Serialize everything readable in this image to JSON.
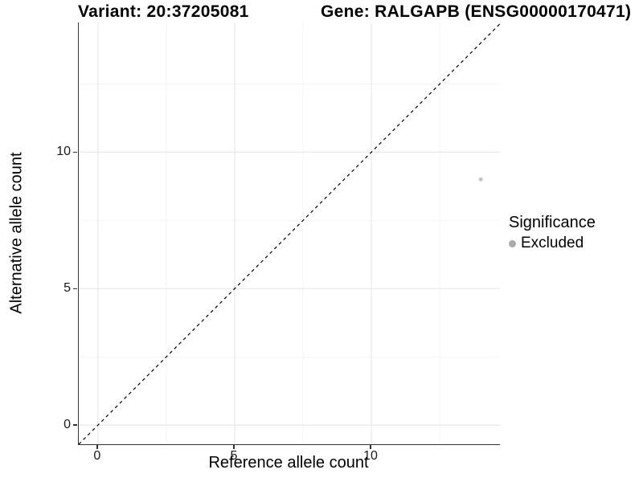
{
  "header": {
    "variant_title": "Variant: 20:37205081",
    "gene_title": "Gene: RALGAPB (ENSG00000170471)"
  },
  "chart_data": {
    "type": "scatter",
    "title_left": "Variant: 20:37205081",
    "title_right": "Gene: RALGAPB (ENSG00000170471)",
    "xlabel": "Reference allele count",
    "ylabel": "Alternative allele count",
    "xlim": [
      -0.7,
      14.7
    ],
    "ylim": [
      -0.7,
      14.75
    ],
    "x_ticks": [
      0,
      5,
      10
    ],
    "y_ticks": [
      0,
      5,
      10
    ],
    "x_minor_gridlines": [
      2.5,
      7.5,
      12.5
    ],
    "y_minor_gridlines": [
      2.5,
      7.5,
      12.5
    ],
    "grid": true,
    "identity_line": {
      "type": "dashed",
      "equation": "y = x",
      "color": "#000000"
    },
    "points": [
      {
        "x": 14,
        "y": 9,
        "series": "Excluded"
      }
    ],
    "legend": {
      "title": "Significance",
      "position": "right",
      "items": [
        {
          "label": "Excluded",
          "color": "#aaaaaa"
        }
      ]
    },
    "style": {
      "axis_line_color": "#333333",
      "grid_major_color": "#e8e8e8",
      "grid_minor_color": "#f4f4f4",
      "point_color": "#c3c3c3",
      "point_radius": 2.5,
      "background": "#ffffff"
    }
  }
}
